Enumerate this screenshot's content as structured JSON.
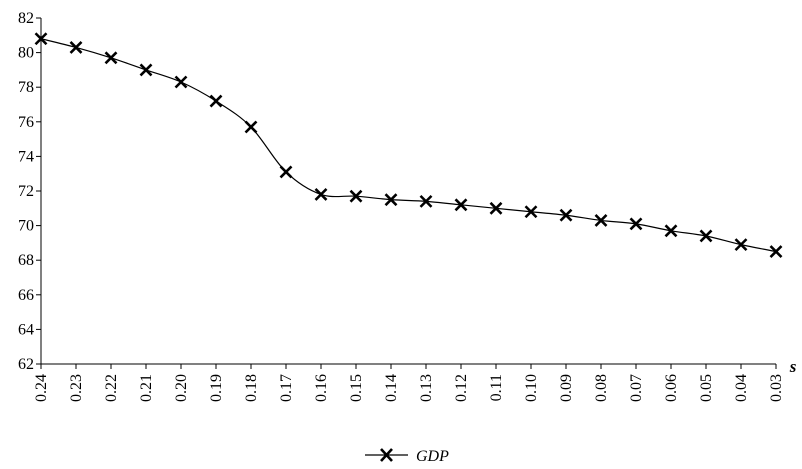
{
  "chart_data": {
    "type": "line",
    "title": "",
    "xlabel": "s",
    "ylabel": "",
    "x": [
      "0.24",
      "0.23",
      "0.22",
      "0.21",
      "0.20",
      "0.19",
      "0.18",
      "0.17",
      "0.16",
      "0.15",
      "0.14",
      "0.13",
      "0.12",
      "0.11",
      "0.10",
      "0.09",
      "0.08",
      "0.07",
      "0.06",
      "0.05",
      "0.04",
      "0.03"
    ],
    "series": [
      {
        "name": "GDP",
        "marker": "x",
        "color": "#000000",
        "values": [
          80.8,
          80.3,
          79.7,
          79.0,
          78.3,
          77.2,
          75.7,
          73.1,
          71.8,
          71.7,
          71.5,
          71.4,
          71.2,
          71.0,
          70.8,
          70.6,
          70.3,
          70.1,
          69.7,
          69.4,
          68.9,
          68.5
        ]
      }
    ],
    "ylim": [
      62,
      82
    ],
    "yticks": [
      62,
      64,
      66,
      68,
      70,
      72,
      74,
      76,
      78,
      80,
      82
    ],
    "grid": false,
    "legend_position": "bottom-center"
  }
}
